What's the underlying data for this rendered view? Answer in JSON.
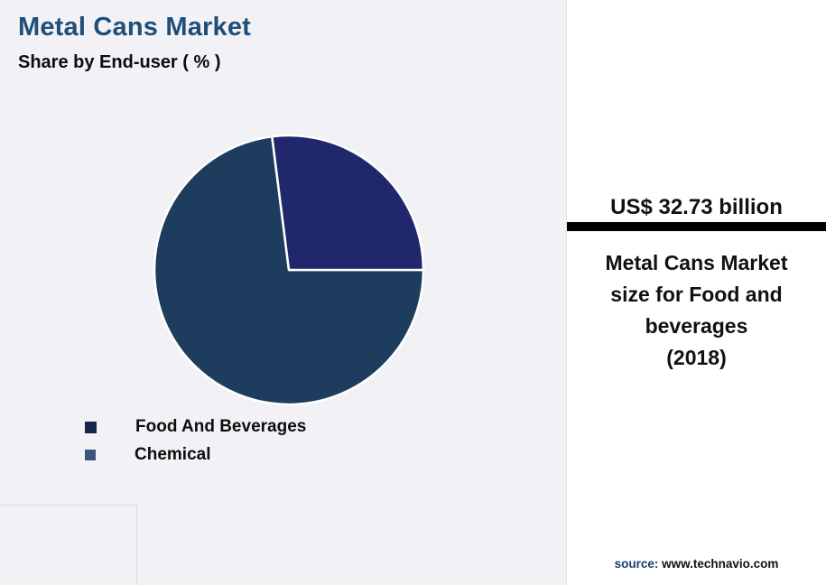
{
  "header": {
    "title": "Metal Cans Market",
    "subtitle": "Share by End-user ( % )"
  },
  "chart_data": {
    "type": "pie",
    "title": "Metal Cans Market — Share by End-user (%)",
    "segments": [
      {
        "label": "Food And Beverages",
        "value": 73,
        "color": "#1d3c5e"
      },
      {
        "label": "Chemical",
        "value": 27,
        "color": "#20286b"
      }
    ],
    "start_angle_deg": 0,
    "direction": "clockwise",
    "slice_gap_color": "#ffffff",
    "legend_position": "bottom-left",
    "data_labels": "none"
  },
  "legend": {
    "items": [
      {
        "label": "Food And Beverages",
        "color": "#14294a"
      },
      {
        "label": "Chemical",
        "color": "#3e537a"
      }
    ]
  },
  "panel": {
    "stat_value": "US$ 32.73 billion",
    "description": "Metal Cans Market\nsize for Food and\nbeverages\n(2018)",
    "source_label": "source:",
    "source_url": "www.technavio.com"
  },
  "colors": {
    "title": "#1f4e79",
    "accent_bar": "#000000",
    "background": "#f2f2f6",
    "panel_bg": "#ffffff"
  }
}
